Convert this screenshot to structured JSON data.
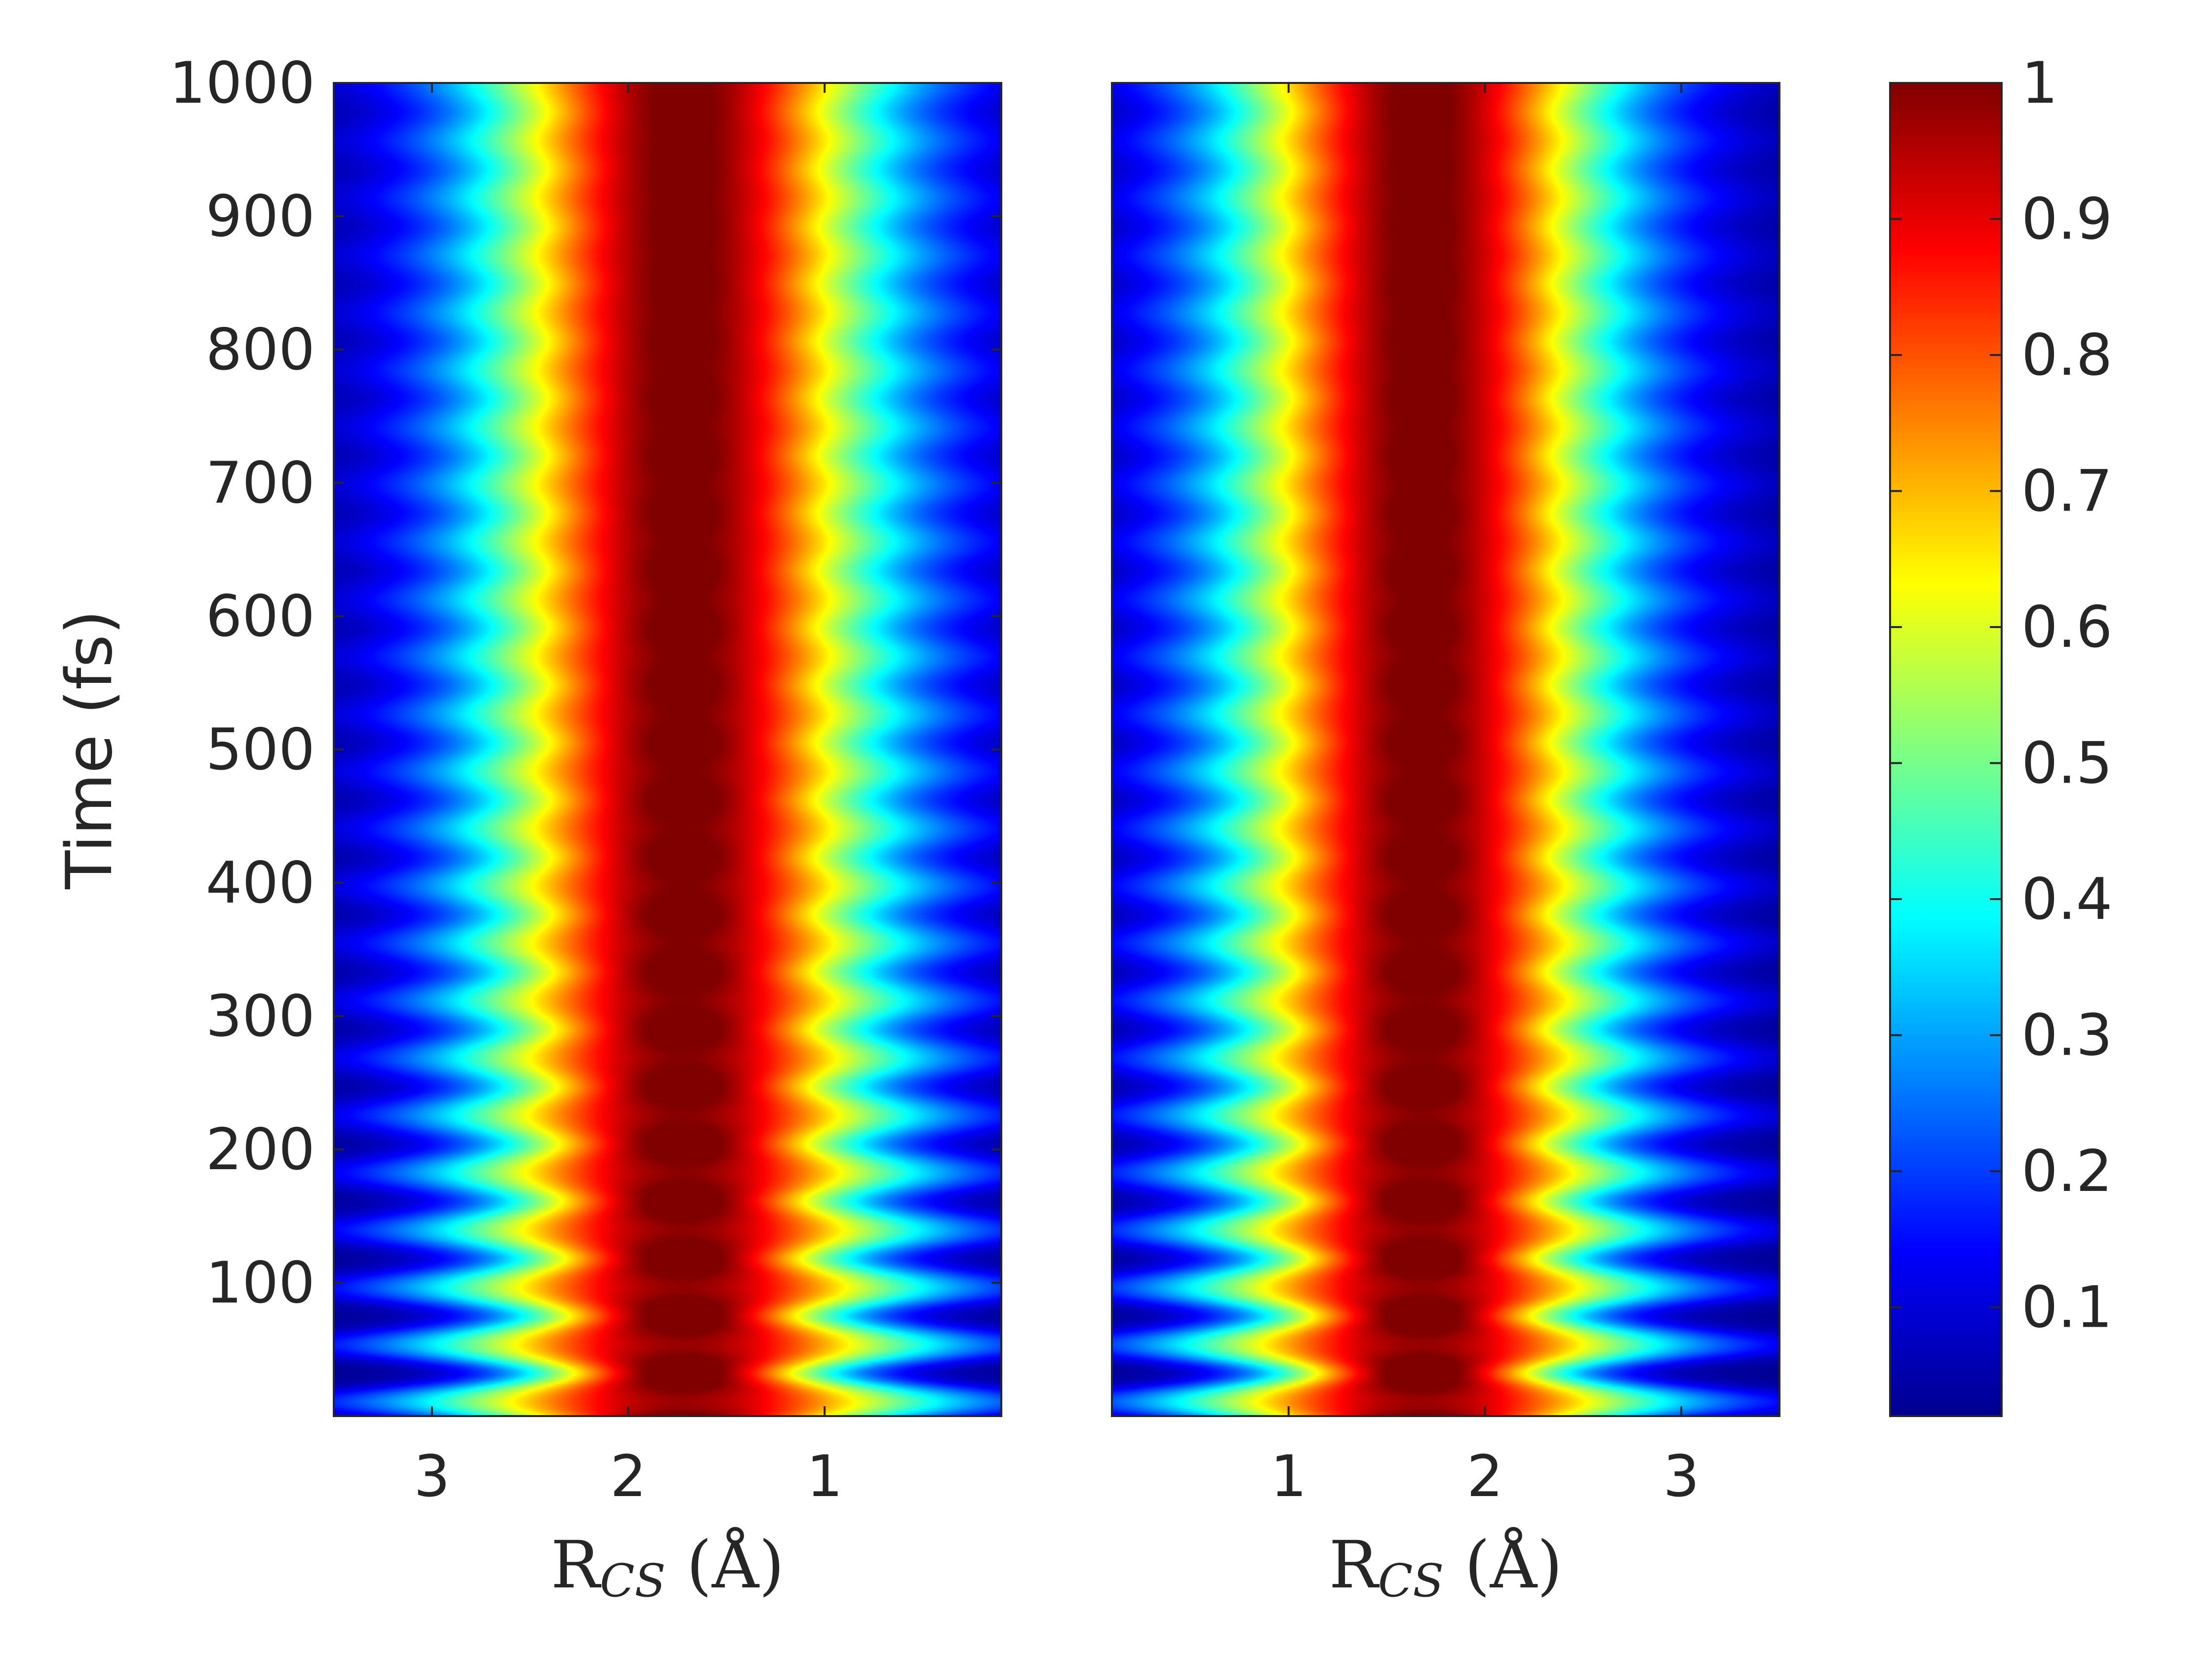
{
  "figure": {
    "colormap": "jet",
    "background": "#ffffff",
    "text_color": "#262626"
  },
  "chart_data": [
    {
      "type": "heatmap",
      "panel": "left",
      "title": "",
      "xlabel": {
        "main": "R",
        "sub": "CS",
        "unit": " (Å)"
      },
      "ylabel": "Time (fs)",
      "xlim": [
        3.5,
        0.1
      ],
      "x_reversed": true,
      "ylim": [
        0,
        1000
      ],
      "x_ticks": [
        3,
        2,
        1
      ],
      "x_tick_labels": [
        "3",
        "2",
        "1"
      ],
      "y_ticks": [
        100,
        200,
        300,
        400,
        500,
        600,
        700,
        800,
        900,
        1000
      ],
      "y_tick_labels": [
        "100",
        "200",
        "300",
        "400",
        "500",
        "600",
        "700",
        "800",
        "900",
        "1000"
      ],
      "density_center_A": 1.72,
      "density_width_A": 0.75,
      "breathing_period_fs": 43,
      "breathing_decay": "strong oscillation below ~300 fs, weak ripples above",
      "peak_value": 1.0
    },
    {
      "type": "heatmap",
      "panel": "right",
      "title": "",
      "xlabel": {
        "main": "R",
        "sub": "CS",
        "unit": " (Å)"
      },
      "ylabel": "",
      "xlim": [
        0.1,
        3.5
      ],
      "x_reversed": false,
      "ylim": [
        0,
        1000
      ],
      "x_ticks": [
        1,
        2,
        3
      ],
      "x_tick_labels": [
        "1",
        "2",
        "3"
      ],
      "y_ticks": [],
      "y_tick_labels": [],
      "density_center_A": 1.68,
      "density_width_A": 0.72,
      "breathing_period_fs": 43,
      "breathing_decay": "strong oscillation below ~300 fs, weak ripples throughout",
      "peak_value": 1.0
    }
  ],
  "colorbar": {
    "min": 0.02,
    "max": 1.0,
    "ticks": [
      0.1,
      0.2,
      0.3,
      0.4,
      0.5,
      0.6,
      0.7,
      0.8,
      0.9,
      1
    ],
    "tick_labels": [
      "0.1",
      "0.2",
      "0.3",
      "0.4",
      "0.5",
      "0.6",
      "0.7",
      "0.8",
      "0.9",
      "1"
    ]
  }
}
